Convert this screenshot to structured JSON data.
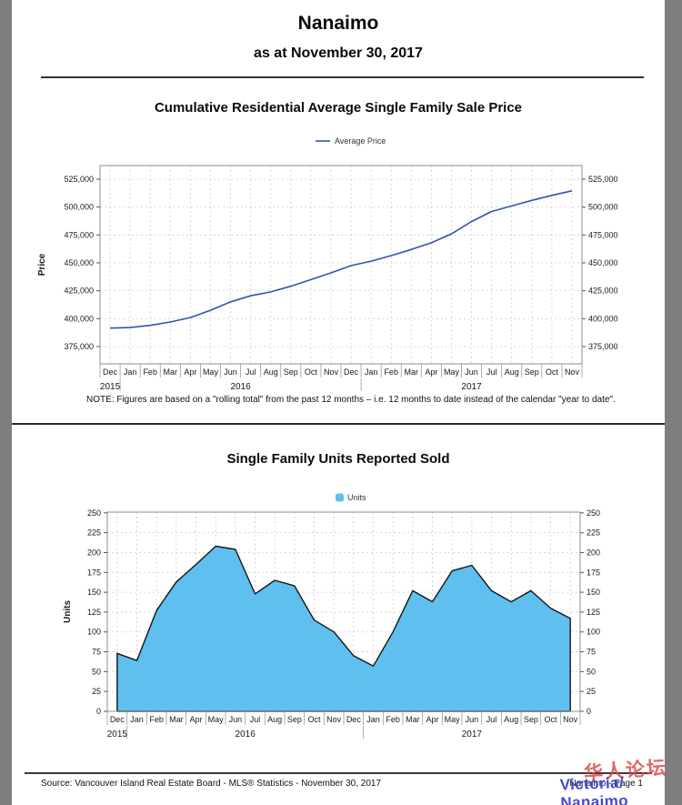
{
  "page": {
    "title": "Nanaimo",
    "subtitle": "as at November 30, 2017"
  },
  "price_chart": {
    "title": "Cumulative Residential Average Single Family Sale Price",
    "legend_label": "Average Price",
    "ylabel": "Price",
    "line_color": "#2f55ae",
    "note": "NOTE:  Figures are based on a \"rolling total\" from the past 12 months – i.e. 12 months to date instead of the calendar \"year to date\"."
  },
  "units_chart": {
    "title": "Single Family Units Reported Sold",
    "legend_label": "Units",
    "ylabel": "Units",
    "fill_color": "#5fbfef",
    "outline_color": "#151515"
  },
  "footer": {
    "source": "Source: Vancouver Island Real Estate Board - MLS® Statistics - November 30, 2017",
    "page_label": "Nanaimo - Page 1",
    "watermark_line1": "华人论坛",
    "watermark_line2": "Victoria/ Nanaimo"
  },
  "chart_data": [
    {
      "type": "line",
      "title": "Cumulative Residential Average Single Family Sale Price",
      "series_name": "Average Price",
      "xlabel": "",
      "ylabel": "Price",
      "months": [
        "Dec",
        "Jan",
        "Feb",
        "Mar",
        "Apr",
        "May",
        "Jun",
        "Jul",
        "Aug",
        "Sep",
        "Oct",
        "Nov",
        "Dec",
        "Jan",
        "Feb",
        "Mar",
        "Apr",
        "May",
        "Jun",
        "Jul",
        "Aug",
        "Sep",
        "Oct",
        "Nov"
      ],
      "year_groups": [
        {
          "label": "2015",
          "start": 0,
          "end": 0
        },
        {
          "label": "2016",
          "start": 1,
          "end": 12
        },
        {
          "label": "2017",
          "start": 13,
          "end": 23
        }
      ],
      "values": [
        391500,
        392000,
        394000,
        397000,
        401000,
        407500,
        415000,
        420500,
        424000,
        429000,
        435000,
        441000,
        447500,
        451500,
        456500,
        462000,
        468000,
        476000,
        487000,
        496000,
        501000,
        506000,
        510500,
        514500
      ],
      "yticks": [
        375000,
        400000,
        425000,
        450000,
        475000,
        500000,
        525000
      ],
      "ylim": [
        359500,
        537200
      ],
      "grid": true,
      "legend_position": "top"
    },
    {
      "type": "area",
      "title": "Single Family Units Reported Sold",
      "series_name": "Units",
      "xlabel": "",
      "ylabel": "Units",
      "months": [
        "Dec",
        "Jan",
        "Feb",
        "Mar",
        "Apr",
        "May",
        "Jun",
        "Jul",
        "Aug",
        "Sep",
        "Oct",
        "Nov",
        "Dec",
        "Jan",
        "Feb",
        "Mar",
        "Apr",
        "May",
        "Jun",
        "Jul",
        "Aug",
        "Sep",
        "Oct",
        "Nov"
      ],
      "year_groups": [
        {
          "label": "2015",
          "start": 0,
          "end": 0
        },
        {
          "label": "2016",
          "start": 1,
          "end": 12
        },
        {
          "label": "2017",
          "start": 13,
          "end": 23
        }
      ],
      "values": [
        73,
        64,
        127,
        163,
        185,
        208,
        204,
        148,
        165,
        158,
        115,
        100,
        70,
        57,
        100,
        152,
        138,
        177,
        184,
        152,
        138,
        152,
        130,
        117
      ],
      "yticks": [
        0,
        25,
        50,
        75,
        100,
        125,
        150,
        175,
        200,
        225,
        250
      ],
      "ylim": [
        0,
        251
      ],
      "grid": true,
      "legend_position": "top"
    }
  ]
}
